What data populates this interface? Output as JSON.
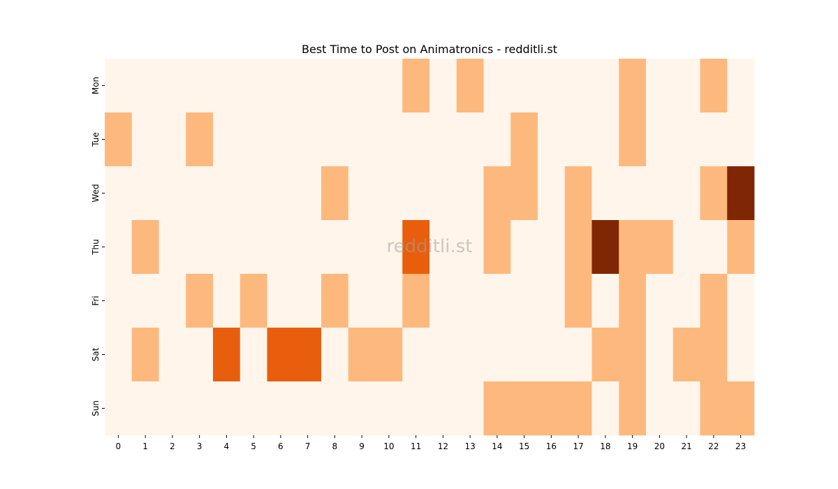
{
  "chart_data": {
    "type": "heatmap",
    "title": "Best Time to Post on Animatronics - redditli.st",
    "watermark": "redditli.st",
    "x_categories": [
      "0",
      "1",
      "2",
      "3",
      "4",
      "5",
      "6",
      "7",
      "8",
      "9",
      "10",
      "11",
      "12",
      "13",
      "14",
      "15",
      "16",
      "17",
      "18",
      "19",
      "20",
      "21",
      "22",
      "23"
    ],
    "y_categories": [
      "Mon",
      "Tue",
      "Wed",
      "Thu",
      "Fri",
      "Sat",
      "Sun"
    ],
    "xlabel": "",
    "ylabel": "",
    "value_range": [
      0,
      3
    ],
    "colors": {
      "0": "#fff5eb",
      "1": "#fdb97d",
      "2": "#e95e0d",
      "3": "#7f2704"
    },
    "values": [
      [
        0,
        0,
        0,
        0,
        0,
        0,
        0,
        0,
        0,
        0,
        0,
        1,
        0,
        1,
        0,
        0,
        0,
        0,
        0,
        1,
        0,
        0,
        1,
        0
      ],
      [
        1,
        0,
        0,
        1,
        0,
        0,
        0,
        0,
        0,
        0,
        0,
        0,
        0,
        0,
        0,
        1,
        0,
        0,
        0,
        1,
        0,
        0,
        0,
        0
      ],
      [
        0,
        0,
        0,
        0,
        0,
        0,
        0,
        0,
        1,
        0,
        0,
        0,
        0,
        0,
        1,
        1,
        0,
        1,
        0,
        0,
        0,
        0,
        1,
        3
      ],
      [
        0,
        1,
        0,
        0,
        0,
        0,
        0,
        0,
        0,
        0,
        0,
        2,
        0,
        0,
        1,
        0,
        0,
        1,
        3,
        1,
        1,
        0,
        0,
        1
      ],
      [
        0,
        0,
        0,
        1,
        0,
        1,
        0,
        0,
        1,
        0,
        0,
        1,
        0,
        0,
        0,
        0,
        0,
        1,
        0,
        1,
        0,
        0,
        1,
        0
      ],
      [
        0,
        1,
        0,
        0,
        2,
        0,
        2,
        2,
        0,
        1,
        1,
        0,
        0,
        0,
        0,
        0,
        0,
        0,
        1,
        1,
        0,
        1,
        1,
        0
      ],
      [
        0,
        0,
        0,
        0,
        0,
        0,
        0,
        0,
        0,
        0,
        0,
        0,
        0,
        0,
        1,
        1,
        1,
        1,
        0,
        1,
        0,
        0,
        1,
        1
      ]
    ]
  }
}
